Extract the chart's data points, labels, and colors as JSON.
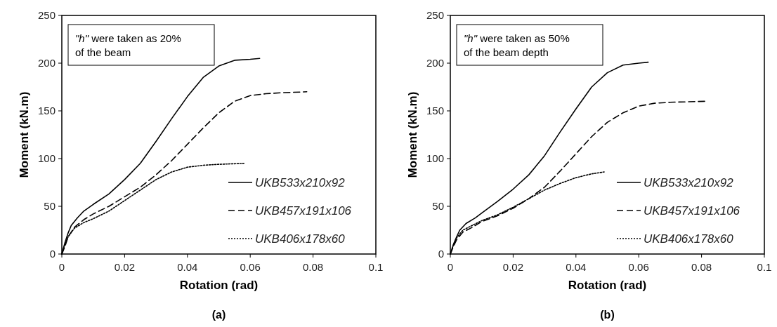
{
  "chart_data": [
    {
      "type": "line",
      "title": "(a)",
      "xlabel": "Rotation (rad)",
      "ylabel": "Moment (kN.m)",
      "annotations": [
        "\"h\" were taken as 20% of the beam"
      ],
      "xlim": [
        0,
        0.1
      ],
      "xticks": [
        0,
        0.02,
        0.04,
        0.06,
        0.08,
        0.1
      ],
      "ylim": [
        0,
        250
      ],
      "yticks": [
        0,
        50,
        100,
        150,
        200,
        250
      ],
      "grid": false,
      "legend": "bottom right",
      "marker": "none",
      "series": [
        {
          "name": "UKB533x210x92",
          "color": "#000000",
          "line_style": "solid",
          "x": [
            0,
            0.001,
            0.002,
            0.003,
            0.005,
            0.007,
            0.01,
            0.015,
            0.02,
            0.025,
            0.03,
            0.035,
            0.04,
            0.045,
            0.05,
            0.055,
            0.06,
            0.063
          ],
          "values": [
            0,
            12,
            22,
            30,
            38,
            45,
            52,
            63,
            78,
            95,
            118,
            142,
            165,
            185,
            197,
            203,
            204,
            205
          ]
        },
        {
          "name": "UKB457x191x106",
          "color": "#000000",
          "line_style": "dashed",
          "x": [
            0,
            0.001,
            0.002,
            0.004,
            0.007,
            0.01,
            0.015,
            0.02,
            0.025,
            0.03,
            0.035,
            0.04,
            0.045,
            0.05,
            0.055,
            0.06,
            0.065,
            0.07,
            0.078
          ],
          "values": [
            0,
            8,
            18,
            28,
            36,
            42,
            50,
            60,
            70,
            83,
            98,
            115,
            132,
            148,
            160,
            166,
            168,
            169,
            170
          ]
        },
        {
          "name": "UKB406x178x60",
          "color": "#000000",
          "line_style": "dotted",
          "x": [
            0,
            0.001,
            0.002,
            0.004,
            0.007,
            0.01,
            0.015,
            0.02,
            0.025,
            0.03,
            0.035,
            0.04,
            0.045,
            0.05,
            0.058
          ],
          "values": [
            0,
            10,
            18,
            27,
            33,
            37,
            45,
            56,
            67,
            78,
            86,
            91,
            93,
            94,
            95
          ]
        }
      ]
    },
    {
      "type": "line",
      "title": "(b)",
      "xlabel": "Rotation (rad)",
      "ylabel": "Moment (kN.m)",
      "annotations": [
        "\"h\" were taken as 50% of the beam depth"
      ],
      "xlim": [
        0,
        0.1
      ],
      "xticks": [
        0,
        0.02,
        0.04,
        0.06,
        0.08,
        0.1
      ],
      "ylim": [
        0,
        250
      ],
      "yticks": [
        0,
        50,
        100,
        150,
        200,
        250
      ],
      "grid": false,
      "legend": "bottom right",
      "marker": "none",
      "series": [
        {
          "name": "UKB533x210x92",
          "color": "#000000",
          "line_style": "solid",
          "x": [
            0,
            0.001,
            0.002,
            0.003,
            0.005,
            0.008,
            0.01,
            0.015,
            0.02,
            0.025,
            0.03,
            0.035,
            0.04,
            0.045,
            0.05,
            0.055,
            0.06,
            0.063
          ],
          "values": [
            0,
            10,
            18,
            25,
            32,
            38,
            43,
            55,
            68,
            83,
            103,
            128,
            152,
            175,
            190,
            198,
            200,
            201
          ]
        },
        {
          "name": "UKB457x191x106",
          "color": "#000000",
          "line_style": "dashed",
          "x": [
            0,
            0.001,
            0.002,
            0.004,
            0.007,
            0.01,
            0.015,
            0.02,
            0.025,
            0.03,
            0.035,
            0.04,
            0.045,
            0.05,
            0.055,
            0.06,
            0.065,
            0.07,
            0.081
          ],
          "values": [
            0,
            8,
            15,
            23,
            28,
            34,
            40,
            48,
            58,
            70,
            87,
            105,
            123,
            138,
            148,
            155,
            158,
            159,
            160
          ]
        },
        {
          "name": "UKB406x178x60",
          "color": "#000000",
          "line_style": "dotted",
          "x": [
            0,
            0.001,
            0.002,
            0.004,
            0.007,
            0.01,
            0.015,
            0.02,
            0.025,
            0.03,
            0.035,
            0.04,
            0.045,
            0.049
          ],
          "values": [
            0,
            10,
            17,
            25,
            30,
            35,
            41,
            49,
            58,
            67,
            74,
            80,
            84,
            86
          ]
        }
      ]
    }
  ]
}
